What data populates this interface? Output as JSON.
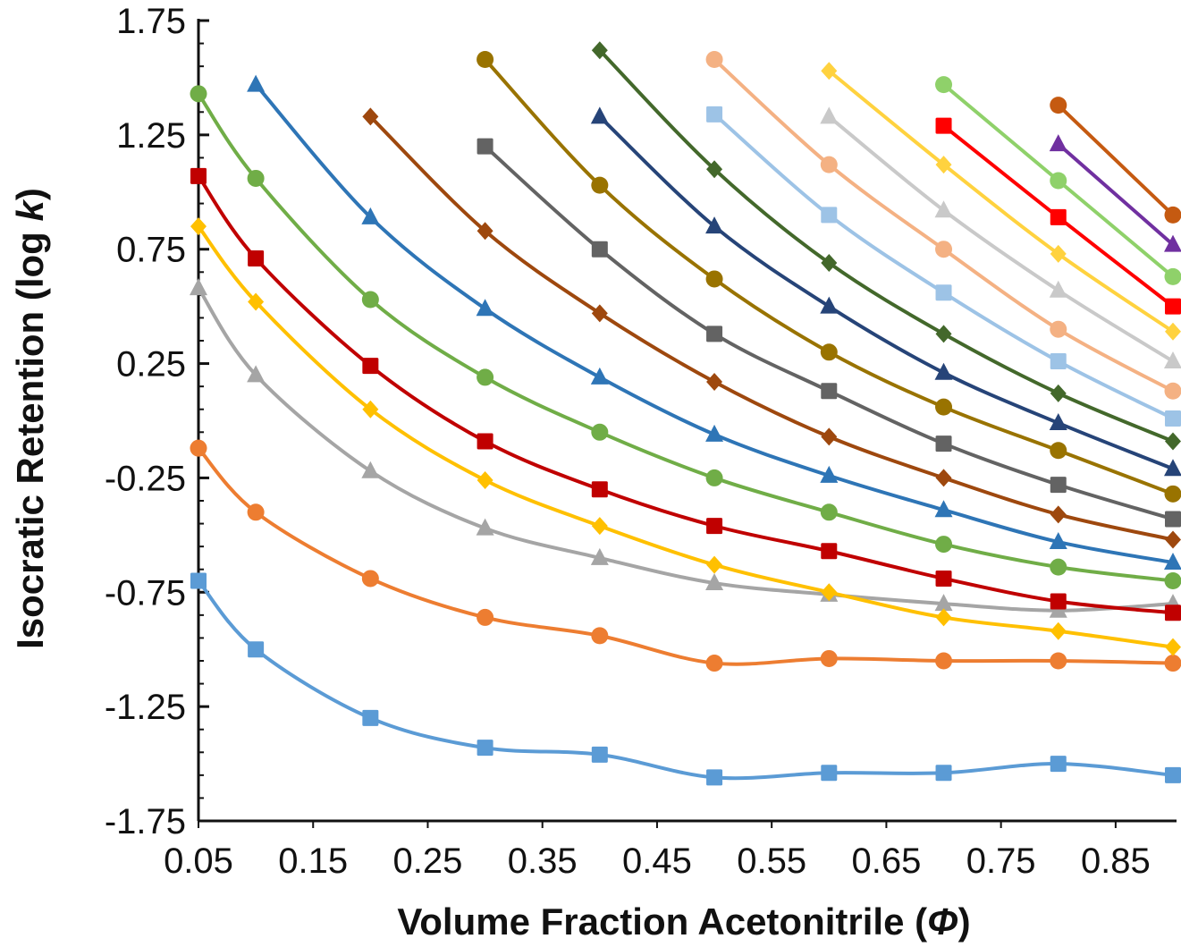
{
  "chart_data": {
    "type": "line",
    "xlabel": "Volume Fraction Acetonitrile (",
    "xlabel_symbol": "Φ",
    "xlabel_end": ")",
    "ylabel": "Isocratic Retention (log ",
    "ylabel_symbol": "k",
    "ylabel_end": ")",
    "xlim": [
      0.05,
      0.9
    ],
    "ylim": [
      -1.75,
      1.75
    ],
    "x_ticks": [
      "0.05",
      "0.15",
      "0.25",
      "0.35",
      "0.45",
      "0.55",
      "0.65",
      "0.75",
      "0.85"
    ],
    "y_ticks": [
      "1.75",
      "1.25",
      "0.75",
      "0.25",
      "-0.25",
      "-0.75",
      "-1.25",
      "-1.75"
    ],
    "legend": "none",
    "grid": false,
    "series": [
      {
        "color": "#5B9BD5",
        "marker": "square",
        "x": [
          0.05,
          0.1,
          0.2,
          0.3,
          0.4,
          0.5,
          0.6,
          0.7,
          0.8,
          0.9
        ],
        "y": [
          -0.7,
          -1.0,
          -1.3,
          -1.43,
          -1.46,
          -1.56,
          -1.54,
          -1.54,
          -1.5,
          -1.55
        ]
      },
      {
        "color": "#ED7D31",
        "marker": "circle",
        "x": [
          0.05,
          0.1,
          0.2,
          0.3,
          0.4,
          0.5,
          0.6,
          0.7,
          0.8,
          0.9
        ],
        "y": [
          -0.12,
          -0.4,
          -0.69,
          -0.86,
          -0.94,
          -1.06,
          -1.04,
          -1.05,
          -1.05,
          -1.06
        ]
      },
      {
        "color": "#A5A5A5",
        "marker": "triangle",
        "x": [
          0.05,
          0.1,
          0.2,
          0.3,
          0.4,
          0.5,
          0.6,
          0.7,
          0.8,
          0.9
        ],
        "y": [
          0.58,
          0.2,
          -0.22,
          -0.47,
          -0.6,
          -0.71,
          -0.76,
          -0.8,
          -0.83,
          -0.8
        ]
      },
      {
        "color": "#FFC000",
        "marker": "diamond",
        "x": [
          0.05,
          0.1,
          0.2,
          0.3,
          0.4,
          0.5,
          0.6,
          0.7,
          0.8,
          0.9
        ],
        "y": [
          0.85,
          0.52,
          0.05,
          -0.26,
          -0.46,
          -0.63,
          -0.75,
          -0.86,
          -0.92,
          -0.99
        ]
      },
      {
        "color": "#C00000",
        "marker": "square",
        "x": [
          0.05,
          0.1,
          0.2,
          0.3,
          0.4,
          0.5,
          0.6,
          0.7,
          0.8,
          0.9
        ],
        "y": [
          1.07,
          0.71,
          0.24,
          -0.09,
          -0.3,
          -0.46,
          -0.57,
          -0.69,
          -0.79,
          -0.84
        ]
      },
      {
        "color": "#70AD47",
        "marker": "circle",
        "x": [
          0.05,
          0.1,
          0.2,
          0.3,
          0.4,
          0.5,
          0.6,
          0.7,
          0.8,
          0.9
        ],
        "y": [
          1.43,
          1.06,
          0.53,
          0.19,
          -0.05,
          -0.25,
          -0.4,
          -0.54,
          -0.64,
          -0.7
        ]
      },
      {
        "color": "#2E75B6",
        "marker": "triangle",
        "x": [
          0.1,
          0.2,
          0.3,
          0.4,
          0.5,
          0.6,
          0.7,
          0.8,
          0.9
        ],
        "y": [
          1.47,
          0.89,
          0.49,
          0.19,
          -0.06,
          -0.24,
          -0.39,
          -0.53,
          -0.62
        ]
      },
      {
        "color": "#9E480E",
        "marker": "diamond",
        "x": [
          0.2,
          0.3,
          0.4,
          0.5,
          0.6,
          0.7,
          0.8,
          0.9
        ],
        "y": [
          1.33,
          0.83,
          0.47,
          0.17,
          -0.07,
          -0.25,
          -0.41,
          -0.52
        ]
      },
      {
        "color": "#636363",
        "marker": "square",
        "x": [
          0.3,
          0.4,
          0.5,
          0.6,
          0.7,
          0.8,
          0.9
        ],
        "y": [
          1.2,
          0.75,
          0.38,
          0.13,
          -0.1,
          -0.28,
          -0.43
        ]
      },
      {
        "color": "#997300",
        "marker": "circle",
        "x": [
          0.3,
          0.4,
          0.5,
          0.6,
          0.7,
          0.8,
          0.9
        ],
        "y": [
          1.58,
          1.03,
          0.62,
          0.3,
          0.06,
          -0.13,
          -0.32
        ]
      },
      {
        "color": "#264478",
        "marker": "triangle",
        "x": [
          0.4,
          0.5,
          0.6,
          0.7,
          0.8,
          0.9
        ],
        "y": [
          1.33,
          0.85,
          0.5,
          0.21,
          -0.01,
          -0.21
        ]
      },
      {
        "color": "#43682B",
        "marker": "diamond",
        "x": [
          0.4,
          0.5,
          0.6,
          0.7,
          0.8,
          0.9
        ],
        "y": [
          1.62,
          1.1,
          0.69,
          0.38,
          0.12,
          -0.09
        ]
      },
      {
        "color": "#9DC3E6",
        "marker": "square",
        "x": [
          0.5,
          0.6,
          0.7,
          0.8,
          0.9
        ],
        "y": [
          1.34,
          0.9,
          0.56,
          0.26,
          0.01
        ]
      },
      {
        "color": "#F4B183",
        "marker": "circle",
        "x": [
          0.5,
          0.6,
          0.7,
          0.8,
          0.9
        ],
        "y": [
          1.58,
          1.12,
          0.75,
          0.4,
          0.13
        ]
      },
      {
        "color": "#C9C9C9",
        "marker": "triangle",
        "x": [
          0.6,
          0.7,
          0.8,
          0.9
        ],
        "y": [
          1.33,
          0.92,
          0.57,
          0.26
        ]
      },
      {
        "color": "#FFD23F",
        "marker": "diamond",
        "x": [
          0.6,
          0.7,
          0.8,
          0.9
        ],
        "y": [
          1.53,
          1.12,
          0.73,
          0.39
        ]
      },
      {
        "color": "#FF0000",
        "marker": "square",
        "x": [
          0.7,
          0.8,
          0.9
        ],
        "y": [
          1.29,
          0.89,
          0.5
        ]
      },
      {
        "color": "#8FD16A",
        "marker": "circle",
        "x": [
          0.7,
          0.8,
          0.9
        ],
        "y": [
          1.47,
          1.05,
          0.63
        ]
      },
      {
        "color": "#7030A0",
        "marker": "triangle",
        "x": [
          0.8,
          0.9
        ],
        "y": [
          1.21,
          0.77
        ]
      },
      {
        "color": "#C55A11",
        "marker": "circle",
        "x": [
          0.8,
          0.9
        ],
        "y": [
          1.38,
          0.9
        ]
      }
    ]
  }
}
